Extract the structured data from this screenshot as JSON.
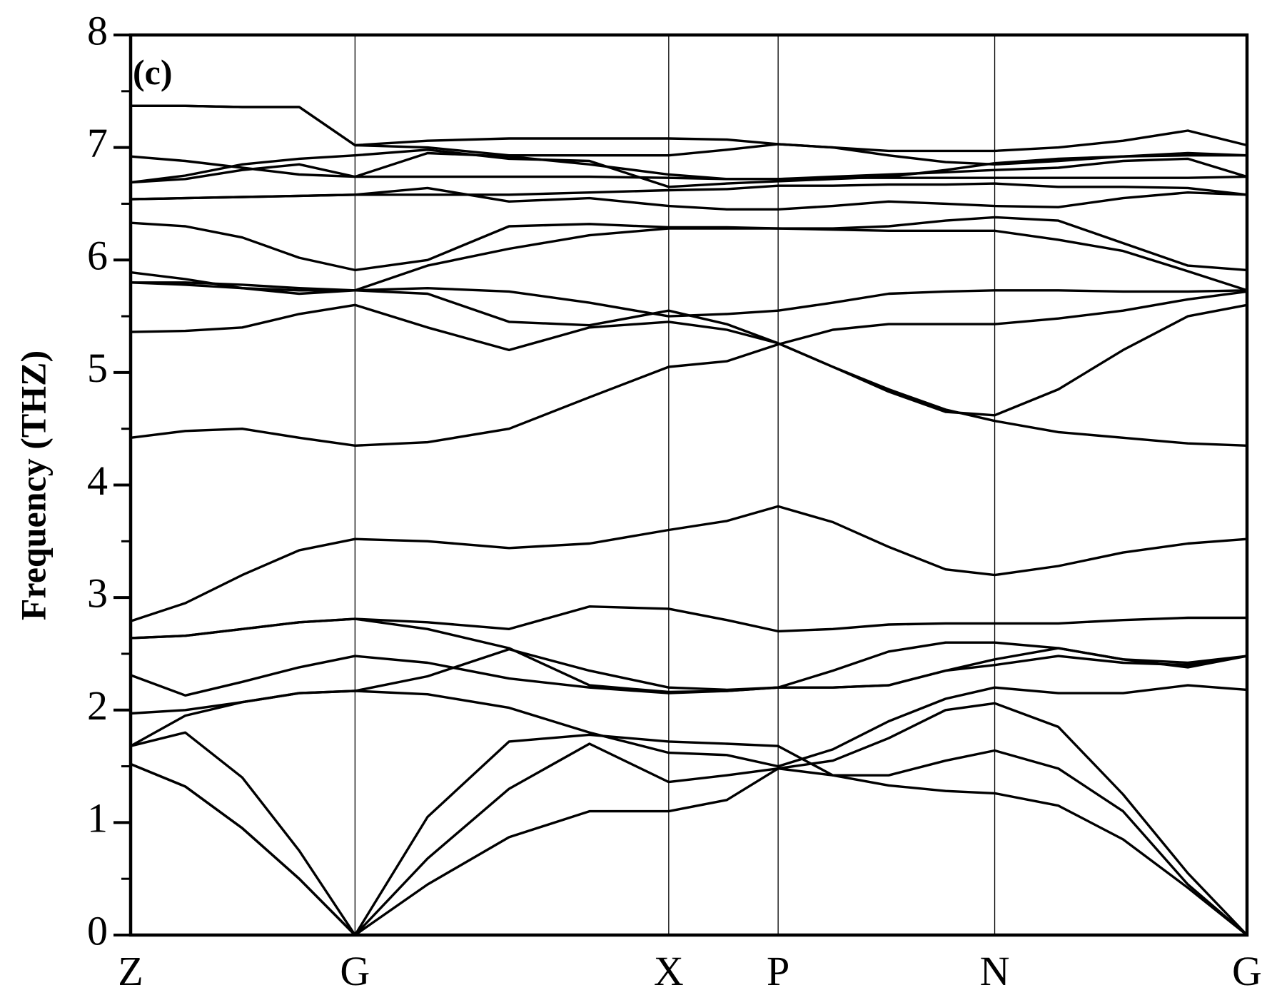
{
  "chart_data": {
    "type": "line",
    "ylabel": "Frequency (THZ)",
    "annotation": "(c)",
    "color": "#000000",
    "x": [
      0,
      0.49,
      1.0,
      1.51,
      2.01,
      2.66,
      3.39,
      4.11,
      4.82,
      5.34,
      5.8,
      6.29,
      6.79,
      7.3,
      7.74,
      8.31,
      8.89,
      9.47,
      10.0
    ],
    "xlim": [
      0,
      10.0
    ],
    "xticks": [
      {
        "value": 0,
        "label": "Z"
      },
      {
        "value": 2.01,
        "label": "G"
      },
      {
        "value": 4.82,
        "label": "X"
      },
      {
        "value": 5.8,
        "label": "P"
      },
      {
        "value": 7.74,
        "label": "N"
      },
      {
        "value": 10.0,
        "label": "G"
      }
    ],
    "ylim": [
      0,
      8
    ],
    "yticks": [
      0,
      1,
      2,
      3,
      4,
      5,
      6,
      7,
      8
    ],
    "yminorticks": [
      0.5,
      1.5,
      2.5,
      3.5,
      4.5,
      5.5,
      6.5,
      7.5
    ],
    "series": [
      {
        "values": [
          1.52,
          1.32,
          0.95,
          0.5,
          0,
          0.45,
          0.87,
          1.1,
          1.1,
          1.2,
          1.48,
          1.42,
          1.33,
          1.28,
          1.26,
          1.15,
          0.85,
          0.42,
          0
        ]
      },
      {
        "values": [
          1.68,
          1.8,
          1.4,
          0.75,
          0,
          0.68,
          1.3,
          1.7,
          1.36,
          1.42,
          1.48,
          1.55,
          1.75,
          2.0,
          2.06,
          1.85,
          1.25,
          0.55,
          0
        ]
      },
      {
        "values": [
          1.52,
          1.32,
          0.95,
          0.5,
          0,
          1.05,
          1.72,
          1.78,
          1.72,
          1.7,
          1.68,
          1.42,
          1.42,
          1.55,
          1.64,
          1.48,
          1.1,
          0.45,
          0
        ]
      },
      {
        "values": [
          1.68,
          1.95,
          2.07,
          2.15,
          2.17,
          2.14,
          2.02,
          1.8,
          1.62,
          1.6,
          1.5,
          1.65,
          1.9,
          2.1,
          2.2,
          2.15,
          2.15,
          2.22,
          2.18
        ]
      },
      {
        "values": [
          1.97,
          2.0,
          2.07,
          2.15,
          2.17,
          2.3,
          2.54,
          2.35,
          2.2,
          2.18,
          2.2,
          2.2,
          2.22,
          2.35,
          2.4,
          2.48,
          2.42,
          2.4,
          2.48
        ]
      },
      {
        "values": [
          2.31,
          2.13,
          2.25,
          2.38,
          2.48,
          2.42,
          2.28,
          2.2,
          2.15,
          2.17,
          2.2,
          2.35,
          2.52,
          2.6,
          2.6,
          2.55,
          2.45,
          2.38,
          2.48
        ]
      },
      {
        "values": [
          2.64,
          2.66,
          2.72,
          2.78,
          2.81,
          2.72,
          2.55,
          2.22,
          2.16,
          2.17,
          2.2,
          2.2,
          2.22,
          2.35,
          2.45,
          2.55,
          2.45,
          2.42,
          2.48
        ]
      },
      {
        "values": [
          2.64,
          2.66,
          2.72,
          2.78,
          2.81,
          2.78,
          2.72,
          2.92,
          2.9,
          2.8,
          2.7,
          2.72,
          2.76,
          2.77,
          2.77,
          2.77,
          2.8,
          2.82,
          2.82
        ]
      },
      {
        "values": [
          2.79,
          2.95,
          3.2,
          3.42,
          3.52,
          3.5,
          3.44,
          3.48,
          3.6,
          3.68,
          3.81,
          3.67,
          3.45,
          3.25,
          3.2,
          3.28,
          3.4,
          3.48,
          3.52
        ]
      },
      {
        "values": [
          4.42,
          4.48,
          4.5,
          4.42,
          4.35,
          4.38,
          4.5,
          4.78,
          5.05,
          5.1,
          5.25,
          5.38,
          5.43,
          5.43,
          5.43,
          5.48,
          5.55,
          5.65,
          5.72
        ]
      },
      {
        "values": [
          5.36,
          5.37,
          5.4,
          5.52,
          5.6,
          5.4,
          5.2,
          5.4,
          5.45,
          5.38,
          5.26,
          5.05,
          4.85,
          4.67,
          4.57,
          4.47,
          4.42,
          4.37,
          4.35
        ]
      },
      {
        "values": [
          5.8,
          5.78,
          5.75,
          5.73,
          5.73,
          5.7,
          5.45,
          5.42,
          5.55,
          5.43,
          5.26,
          5.05,
          4.83,
          4.65,
          4.62,
          4.85,
          5.2,
          5.5,
          5.6
        ]
      },
      {
        "values": [
          5.89,
          5.83,
          5.75,
          5.7,
          5.73,
          5.95,
          6.1,
          6.22,
          6.28,
          6.28,
          6.28,
          6.27,
          6.26,
          6.26,
          6.26,
          6.18,
          6.08,
          5.9,
          5.73
        ]
      },
      {
        "values": [
          5.8,
          5.8,
          5.78,
          5.75,
          5.73,
          5.75,
          5.72,
          5.62,
          5.5,
          5.52,
          5.55,
          5.62,
          5.7,
          5.72,
          5.73,
          5.73,
          5.72,
          5.72,
          5.73
        ]
      },
      {
        "values": [
          6.33,
          6.3,
          6.2,
          6.02,
          5.91,
          6.0,
          6.3,
          6.32,
          6.29,
          6.29,
          6.28,
          6.28,
          6.3,
          6.35,
          6.38,
          6.35,
          6.15,
          5.95,
          5.91
        ]
      },
      {
        "values": [
          6.54,
          6.55,
          6.56,
          6.57,
          6.58,
          6.64,
          6.52,
          6.55,
          6.48,
          6.45,
          6.45,
          6.48,
          6.52,
          6.5,
          6.48,
          6.47,
          6.55,
          6.6,
          6.58
        ]
      },
      {
        "values": [
          6.54,
          6.55,
          6.56,
          6.57,
          6.58,
          6.58,
          6.58,
          6.6,
          6.62,
          6.63,
          6.66,
          6.66,
          6.67,
          6.67,
          6.68,
          6.65,
          6.65,
          6.64,
          6.58
        ]
      },
      {
        "values": [
          6.69,
          6.72,
          6.8,
          6.85,
          6.74,
          6.74,
          6.74,
          6.74,
          6.73,
          6.72,
          6.72,
          6.73,
          6.73,
          6.73,
          6.73,
          6.73,
          6.73,
          6.73,
          6.74
        ]
      },
      {
        "values": [
          6.92,
          6.88,
          6.82,
          6.76,
          6.74,
          6.95,
          6.92,
          6.85,
          6.76,
          6.72,
          6.72,
          6.74,
          6.76,
          6.78,
          6.8,
          6.82,
          6.88,
          6.9,
          6.74
        ]
      },
      {
        "values": [
          6.69,
          6.75,
          6.85,
          6.9,
          6.93,
          6.98,
          6.9,
          6.88,
          6.65,
          6.68,
          6.7,
          6.72,
          6.74,
          6.8,
          6.86,
          6.9,
          6.92,
          6.93,
          6.93
        ]
      },
      {
        "values": [
          7.37,
          7.37,
          7.36,
          7.36,
          7.02,
          7.06,
          7.08,
          7.08,
          7.08,
          7.07,
          7.03,
          7.0,
          6.97,
          6.97,
          6.97,
          7.0,
          7.06,
          7.15,
          7.02
        ]
      },
      {
        "values": [
          7.37,
          7.37,
          7.36,
          7.36,
          7.02,
          7.0,
          6.93,
          6.93,
          6.93,
          6.98,
          7.03,
          7.0,
          6.93,
          6.87,
          6.85,
          6.88,
          6.92,
          6.95,
          6.93
        ]
      }
    ]
  }
}
